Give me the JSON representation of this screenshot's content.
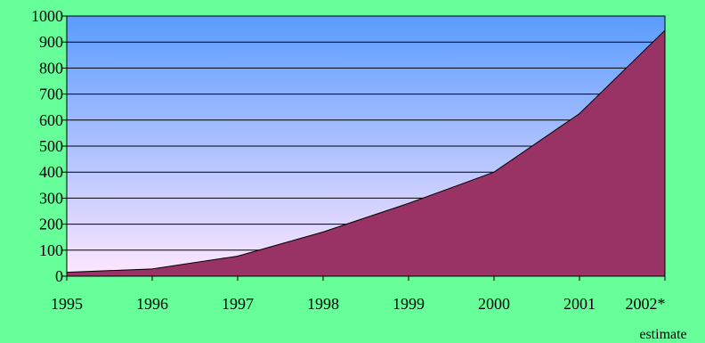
{
  "colors": {
    "page_background": "#66ff99",
    "plot_gradient_top": "#5a9cff",
    "plot_gradient_bottom": "#ffe6ff",
    "area_fill": "#993366",
    "gridline": "#000000"
  },
  "chart_data": {
    "type": "area",
    "categories": [
      "1995",
      "1996",
      "1997",
      "1998",
      "1999",
      "2000",
      "2001",
      "2002*"
    ],
    "values": [
      15,
      28,
      77,
      170,
      280,
      400,
      625,
      945
    ],
    "xlabel": "",
    "ylabel": "",
    "ylim": [
      0,
      1000
    ],
    "yticks": [
      0,
      100,
      200,
      300,
      400,
      500,
      600,
      700,
      800,
      900,
      1000
    ],
    "grid": true,
    "legend": "none",
    "annotation": "estimate"
  }
}
